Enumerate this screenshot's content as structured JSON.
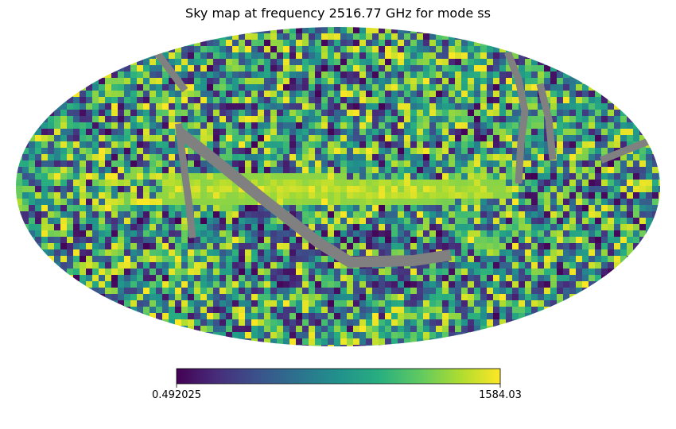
{
  "chart_data": {
    "type": "heatmap",
    "projection": "mollweide",
    "title": "Sky map at frequency 2516.77 GHz for mode ss",
    "colormap": "viridis",
    "colorbar": {
      "min": 0.492025,
      "max": 1584.03,
      "min_label": "0.492025",
      "max_label": "1584.03",
      "orientation": "horizontal",
      "placement": "bottom"
    },
    "bad_value_color": "#808080",
    "features": [
      {
        "name": "galactic-plane-band",
        "description": "bright band of values near colour-scale maximum along the equator"
      },
      {
        "name": "masked-scan-stripes",
        "description": "grey masked (no data) diagonal stripes"
      }
    ],
    "grid": false,
    "legend": "none"
  },
  "colors": {
    "background": "#ffffff",
    "masked": "#808080",
    "viridis_stops": [
      "#440154",
      "#472d7b",
      "#3b528b",
      "#2c728e",
      "#21918c",
      "#28ae80",
      "#5ec962",
      "#addc30",
      "#fde725"
    ]
  }
}
